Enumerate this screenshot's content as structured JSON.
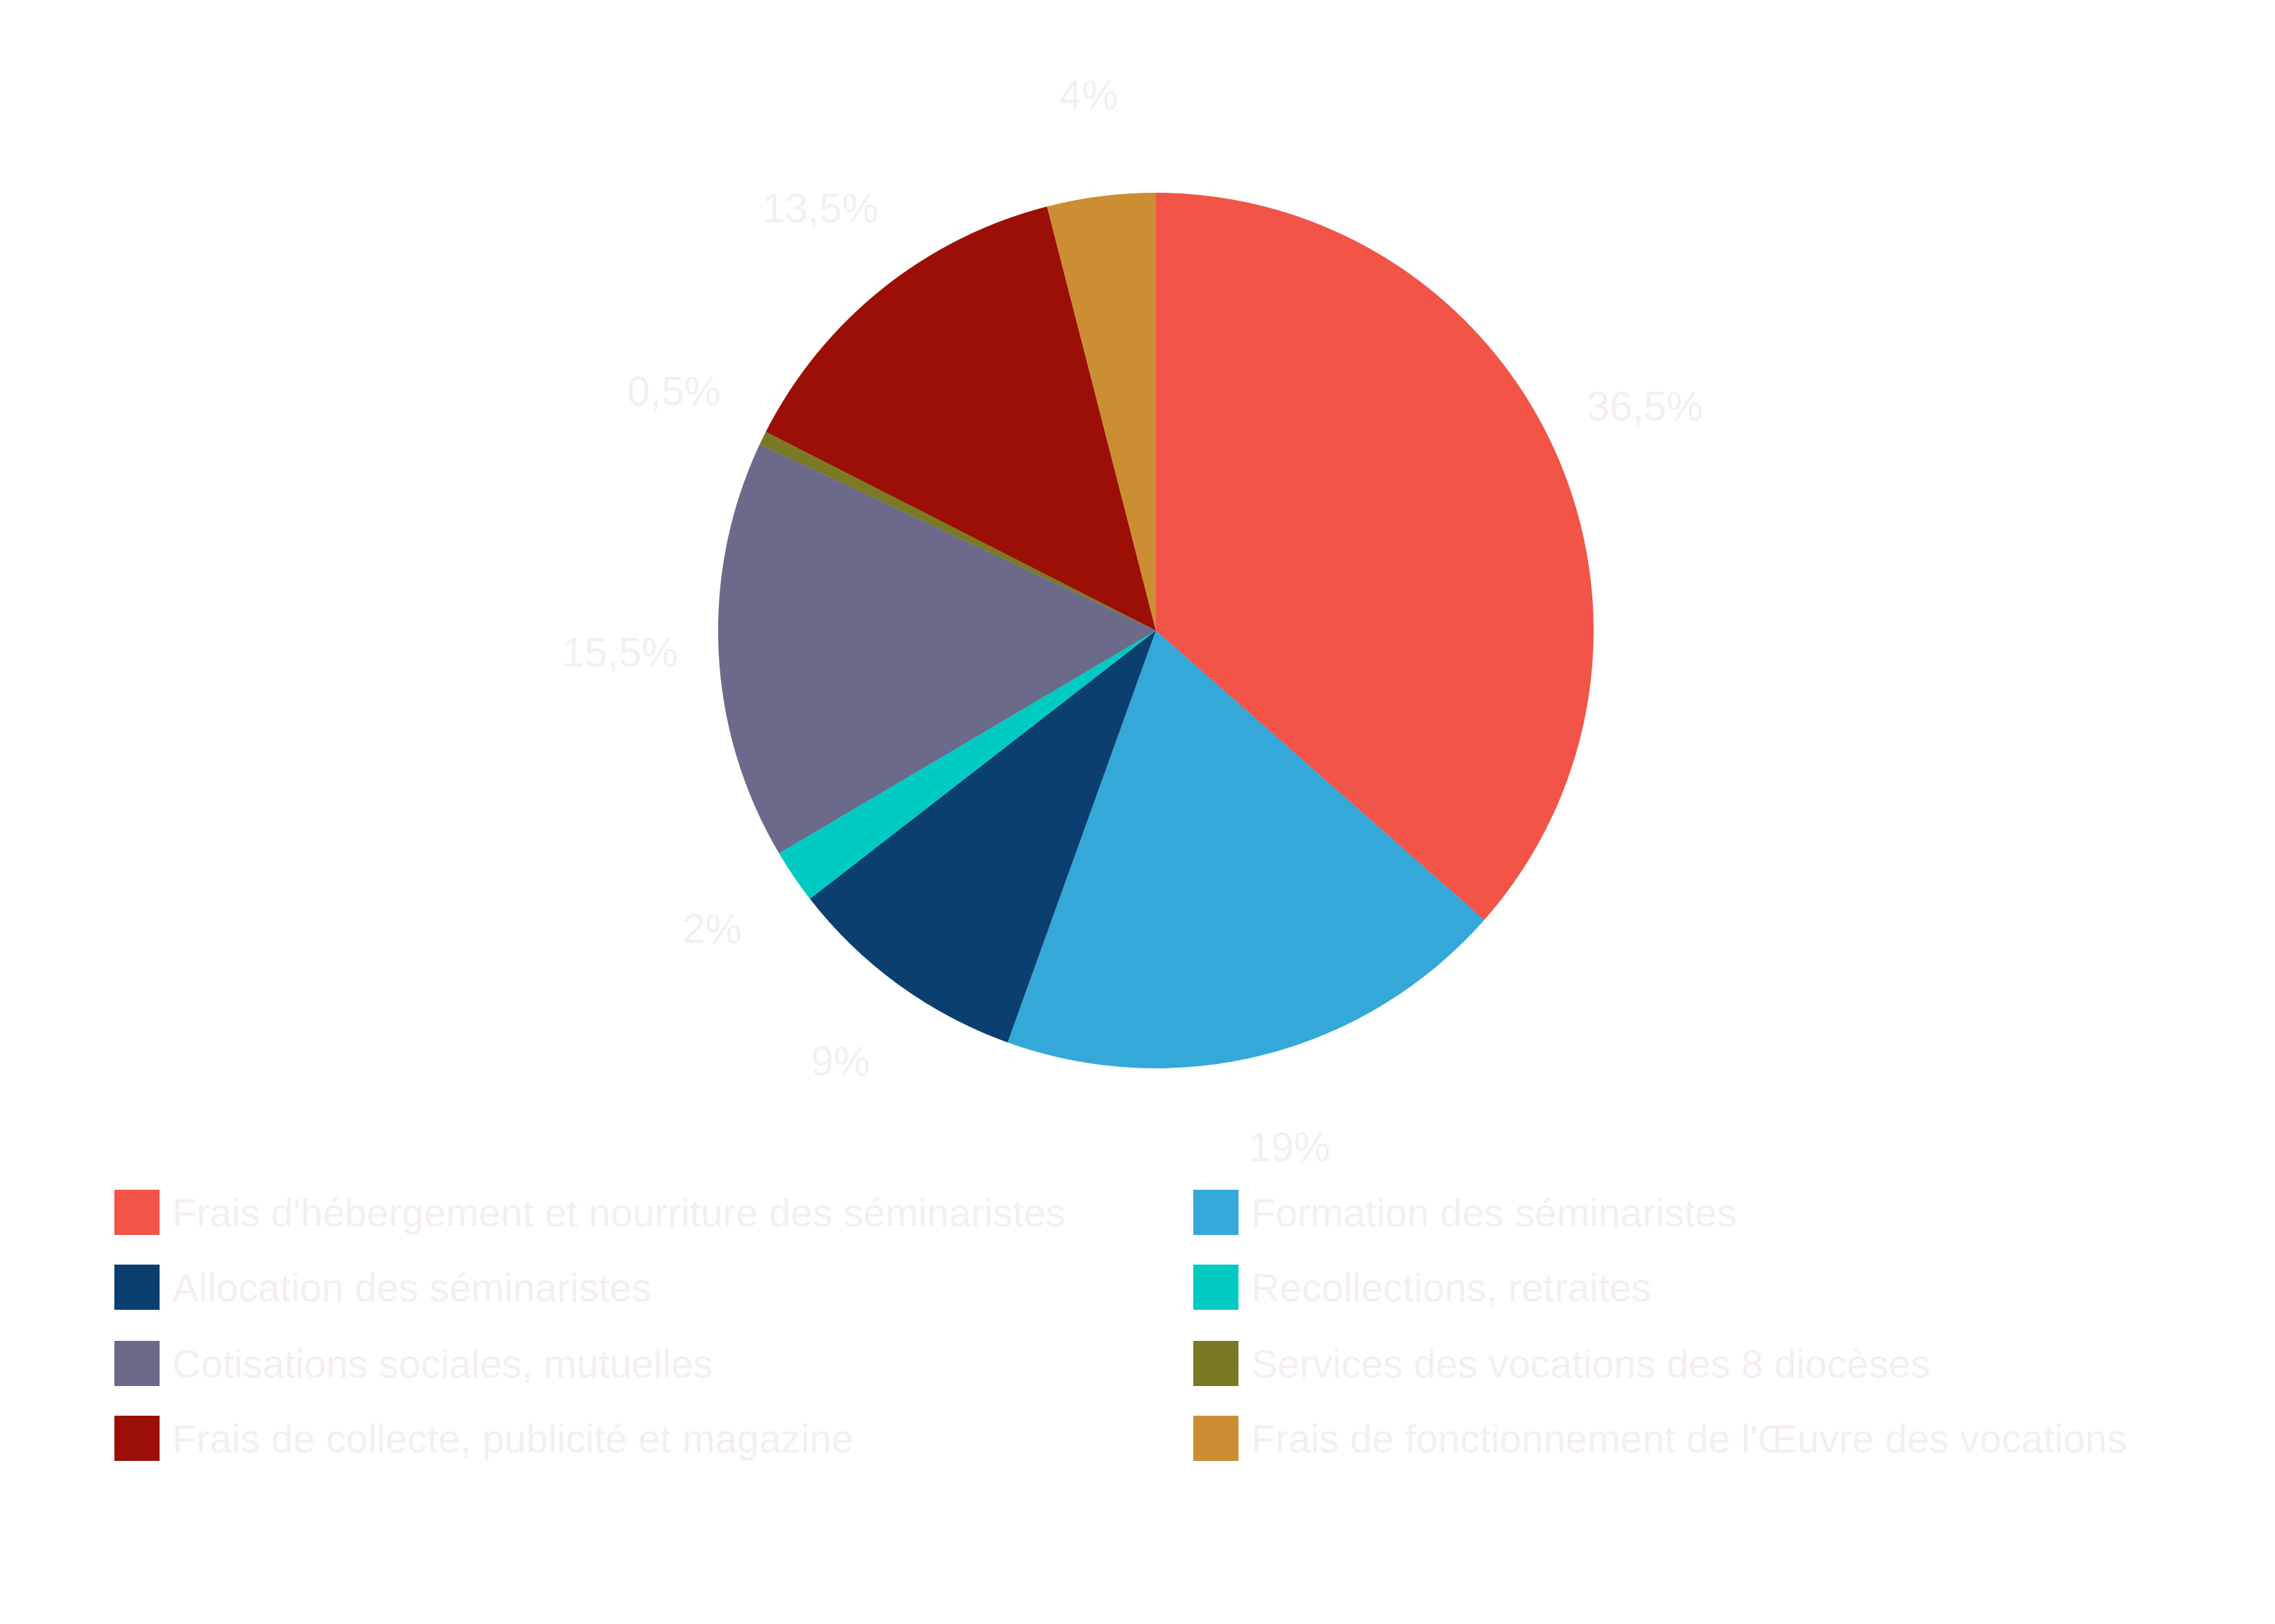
{
  "chart_data": {
    "type": "pie",
    "start": "12 o'clock, clockwise",
    "slices": [
      {
        "name": "Frais d'hébergement et nourriture des séminaristes",
        "value": 36.5,
        "label": "36,5%",
        "color": "#f25448"
      },
      {
        "name": "Formation des séminaristes",
        "value": 19,
        "label": "19%",
        "color": "#34a8d8"
      },
      {
        "name": "Allocation des séminaristes",
        "value": 9,
        "label": "9%",
        "color": "#0a3f70"
      },
      {
        "name": "Recollections, retraites",
        "value": 2,
        "label": "2%",
        "color": "#00cbc3"
      },
      {
        "name": "Cotisations sociales, mutuelles",
        "value": 15.5,
        "label": "15,5%",
        "color": "#6b6a8b"
      },
      {
        "name": "Services des vocations des 8 diocèses",
        "value": 0.5,
        "label": "0,5%",
        "color": "#7a7a25"
      },
      {
        "name": "Frais de collecte, publicité et magazine",
        "value": 13.5,
        "label": "13,5%",
        "color": "#9c0f06"
      },
      {
        "name": "Frais de fonctionnement de l'Œuvre des vocations",
        "value": 4,
        "label": "4%",
        "color": "#cc8e33"
      }
    ],
    "legend": {
      "placement": "bottom",
      "items": [
        {
          "text": "Frais d'hébergement et nourriture des séminaristes",
          "color": "#f25448"
        },
        {
          "text": "Formation des séminaristes",
          "color": "#34a8d8"
        },
        {
          "text": "Allocation des séminaristes",
          "color": "#0a3f70"
        },
        {
          "text": "Recollections, retraites",
          "color": "#00cbc3"
        },
        {
          "text": "Cotisations sociales, mutuelles",
          "color": "#6b6a8b"
        },
        {
          "text": "Services des vocations des 8 diocèses",
          "color": "#7a7a25"
        },
        {
          "text": "Frais de collecte, publicité et magazine",
          "color": "#9c0f06"
        },
        {
          "text": "Frais de fonctionnement de l'Œuvre des vocations",
          "color": "#cc8e33"
        }
      ]
    }
  }
}
